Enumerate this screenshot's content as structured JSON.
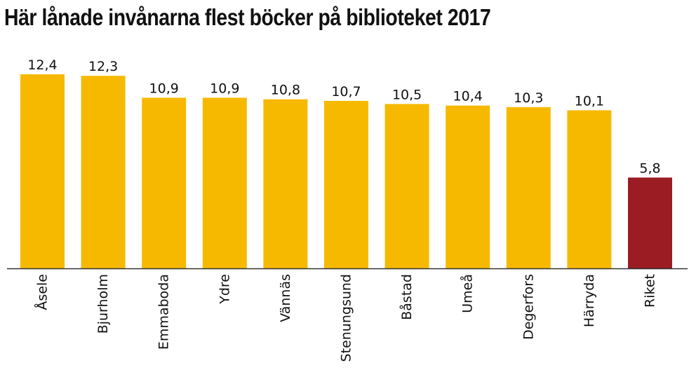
{
  "chart_data": {
    "type": "bar",
    "title": "Här lånade invånarna flest böcker på biblioteket 2017",
    "xlabel": "",
    "ylabel": "",
    "ylim": [
      0,
      12.4
    ],
    "grid": false,
    "categories": [
      "Åsele",
      "Bjurholm",
      "Emmaboda",
      "Ydre",
      "Vännäs",
      "Stenungsund",
      "Båstad",
      "Umeå",
      "Degerfors",
      "Härryda",
      "Riket"
    ],
    "values": [
      12.4,
      12.3,
      10.9,
      10.9,
      10.8,
      10.7,
      10.5,
      10.4,
      10.3,
      10.1,
      5.8
    ],
    "value_labels": [
      "12,4",
      "12,3",
      "10,9",
      "10,9",
      "10,8",
      "10,7",
      "10,5",
      "10,4",
      "10,3",
      "10,1",
      "5,8"
    ],
    "colors": {
      "default_bar": "#F7B900",
      "highlight_bar": "#9B1C23",
      "axis": "#333333"
    },
    "highlight_categories": [
      "Riket"
    ]
  }
}
